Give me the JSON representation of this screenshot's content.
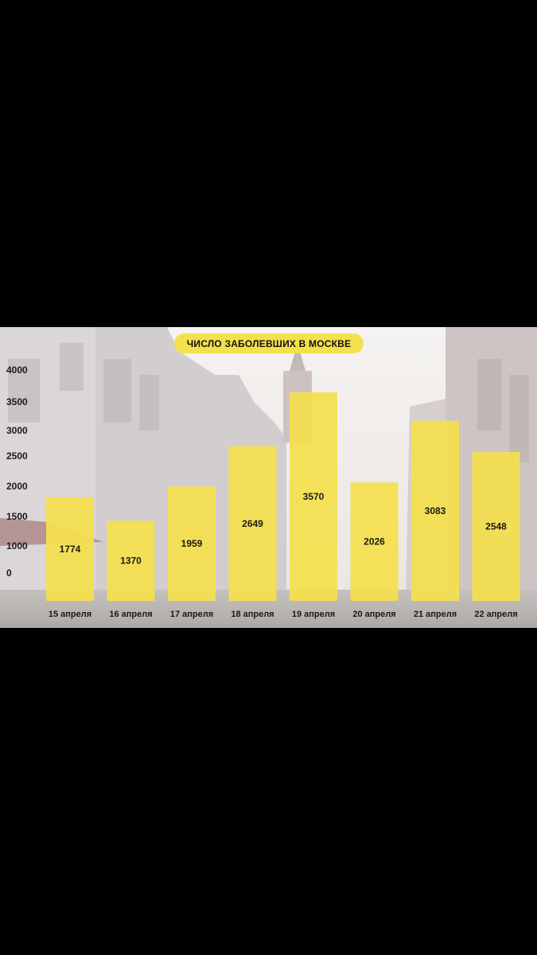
{
  "colors": {
    "frame": "#000000",
    "bar": "#f4e04d",
    "title_pill": "#f4e04d",
    "text": "#1a1a1a"
  },
  "chart_data": {
    "type": "bar",
    "title": "ЧИСЛО ЗАБОЛЕВШИХ В МОСКВЕ",
    "categories": [
      "15 апреля",
      "16 апреля",
      "17 апреля",
      "18 апреля",
      "19 апреля",
      "20 апреля",
      "21 апреля",
      "22 апреля"
    ],
    "values": [
      1774,
      1370,
      1959,
      2649,
      3570,
      2026,
      3083,
      2548
    ],
    "value_labels": [
      "1774",
      "1370",
      "1959",
      "2649",
      "3570",
      "2026",
      "3083",
      "2548"
    ],
    "y_ticks": [
      "4000",
      "3500",
      "3000",
      "2500",
      "2000",
      "1500",
      "1000",
      "0"
    ],
    "grid": false,
    "legend": "none"
  }
}
